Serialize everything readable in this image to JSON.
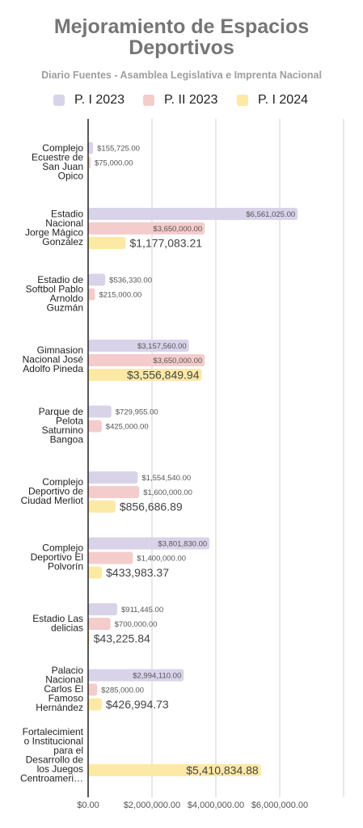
{
  "title": "Mejoramiento de Espacios Deportivos",
  "subtitle": "Diario Fuentes - Asamblea Legislativa e Imprenta Nacional",
  "colors": {
    "series": [
      "#d9d3ea",
      "#f4cccc",
      "#fde9a6"
    ],
    "axis": "#222222",
    "grid": "#d0d0d0",
    "label": "#555555"
  },
  "chart_data": {
    "type": "bar",
    "orientation": "horizontal",
    "title": "Mejoramiento de Espacios Deportivos",
    "subtitle": "Diario Fuentes - Asamblea Legislativa e Imprenta Nacional",
    "xlim": [
      0,
      8000000
    ],
    "xticks": [
      "$0.00",
      "$2,000,000.00",
      "$4,000,000.00",
      "$6,000,000.00"
    ],
    "grid": true,
    "legend_position": "top",
    "categories": [
      [
        "Complejo",
        "Ecuestre de",
        "San Juan",
        "Opico"
      ],
      [
        "Estadio",
        "Nacional",
        "Jorge Mágico",
        "González"
      ],
      [
        "Estadio de",
        "Softbol Pablo",
        "Arnoldo",
        "Guzmán"
      ],
      [
        "Gimnasion",
        "Nacional José",
        "Adolfo Pineda"
      ],
      [
        "Parque de",
        "Pelota",
        "Saturnino",
        "Bangoa"
      ],
      [
        "Complejo",
        "Deportivo de",
        "Ciudad Merliot"
      ],
      [
        "Complejo",
        "Deportivo El",
        "Polvorín"
      ],
      [
        "Estadio Las",
        "delicias"
      ],
      [
        "Palacio",
        "Nacional",
        "Carlos El",
        "Famoso",
        "Hernández"
      ],
      [
        "Fortalecimient",
        "o Institucional",
        "para el",
        "Desarrollo de",
        "los Juegos",
        "Centroameri…"
      ]
    ],
    "series": [
      {
        "name": "P. I 2023",
        "values": [
          155725,
          6561025,
          536330,
          3157560,
          729955,
          1554540,
          3801830,
          911445,
          2994110,
          null
        ],
        "labels": [
          "$155,725.00",
          "$6,561,025.00",
          "$536,330.00",
          "$3,157,560.00",
          "$729,955.00",
          "$1,554,540.00",
          "$3,801,830.00",
          "$911,445.00",
          "$2,994,110.00",
          ""
        ]
      },
      {
        "name": "P. II 2023",
        "values": [
          75000,
          3650000,
          215000,
          3650000,
          425000,
          1600000,
          1400000,
          700000,
          285000,
          null
        ],
        "labels": [
          "$75,000.00",
          "$3,650,000.00",
          "$215,000.00",
          "$3,650,000.00",
          "$425,000.00",
          "$1,600,000.00",
          "$1,400,000.00",
          "$700,000.00",
          "$285,000.00",
          ""
        ]
      },
      {
        "name": "P. I 2024",
        "values": [
          null,
          1177083.21,
          null,
          3556849.94,
          null,
          856686.89,
          433983.37,
          43225.84,
          426994.73,
          5410834.88
        ],
        "labels": [
          "",
          "$1,177,083.21",
          "",
          "$3,556,849.94",
          "",
          "$856,686.89",
          "$433,983.37",
          "$43,225.84",
          "$426,994.73",
          "$5,410,834.88"
        ]
      }
    ]
  }
}
